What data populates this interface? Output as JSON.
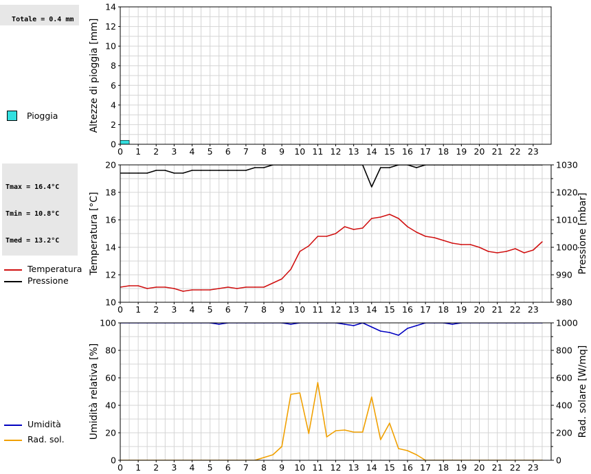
{
  "info": {
    "totale": "Totale = 0.4 mm",
    "tmax": "Tmax = 16.4°C",
    "tmin": "Tmin = 10.8°C",
    "tmed": "Tmed = 13.2°C"
  },
  "legend": {
    "rain": "Pioggia",
    "temperature": "Temperatura",
    "pressure": "Pressione",
    "humidity": "Umidità",
    "radiation": "Rad. sol."
  },
  "colors": {
    "rain": "#33e0e0",
    "temperature": "#d01010",
    "pressure": "#000000",
    "humidity": "#0000c0",
    "radiation": "#f0a000",
    "grid": "#d4d4d4"
  },
  "chart_data": [
    {
      "type": "bar",
      "ylabel": "Altezze di pioggia [mm]",
      "ylim": [
        0,
        14
      ],
      "yticks": [
        0,
        2,
        4,
        6,
        8,
        10,
        12,
        14
      ],
      "xticks": [
        0,
        1,
        2,
        3,
        4,
        5,
        6,
        7,
        8,
        9,
        10,
        11,
        12,
        13,
        14,
        15,
        16,
        17,
        18,
        19,
        20,
        21,
        22,
        23
      ],
      "series": [
        {
          "name": "Pioggia",
          "bars": [
            {
              "x": 0.0,
              "width": 0.5,
              "value": 0.4
            }
          ]
        }
      ]
    },
    {
      "type": "line",
      "ylabel": "Temperatura [°C]",
      "y2label": "Pressione [mbar]",
      "ylim": [
        10,
        20
      ],
      "y2lim": [
        980,
        1030
      ],
      "yticks": [
        10,
        12,
        14,
        16,
        18,
        20
      ],
      "y2ticks": [
        980,
        990,
        1000,
        1010,
        1020,
        1030
      ],
      "xticks": [
        0,
        1,
        2,
        3,
        4,
        5,
        6,
        7,
        8,
        9,
        10,
        11,
        12,
        13,
        14,
        15,
        16,
        17,
        18,
        19,
        20,
        21,
        22,
        23
      ],
      "series": [
        {
          "name": "Temperatura",
          "axis": "left",
          "x": [
            0,
            0.5,
            1,
            1.5,
            2,
            2.5,
            3,
            3.5,
            4,
            4.5,
            5,
            5.5,
            6,
            6.5,
            7,
            7.5,
            8,
            8.5,
            9,
            9.5,
            10,
            10.5,
            11,
            11.5,
            12,
            12.5,
            13,
            13.5,
            14,
            14.5,
            15,
            15.5,
            16,
            16.5,
            17,
            17.5,
            18,
            18.5,
            19,
            19.5,
            20,
            20.5,
            21,
            21.5,
            22,
            22.5,
            23,
            23.5
          ],
          "values": [
            11.1,
            11.2,
            11.2,
            11.0,
            11.1,
            11.1,
            11.0,
            10.8,
            10.9,
            10.9,
            10.9,
            11.0,
            11.1,
            11.0,
            11.1,
            11.1,
            11.1,
            11.4,
            11.7,
            12.4,
            13.7,
            14.1,
            14.8,
            14.8,
            15.0,
            15.5,
            15.3,
            15.4,
            16.1,
            16.2,
            16.4,
            16.1,
            15.5,
            15.1,
            14.8,
            14.7,
            14.5,
            14.3,
            14.2,
            14.2,
            14.0,
            13.7,
            13.6,
            13.7,
            13.9,
            13.6,
            13.8,
            14.4
          ]
        },
        {
          "name": "Pressione",
          "axis": "right",
          "x": [
            0,
            0.5,
            1,
            1.5,
            2,
            2.5,
            3,
            3.5,
            4,
            4.5,
            5,
            5.5,
            6,
            6.5,
            7,
            7.5,
            8,
            8.5,
            9,
            9.5,
            10,
            10.5,
            11,
            11.5,
            12,
            12.5,
            13,
            13.5,
            14,
            14.5,
            15,
            15.5,
            16,
            16.5,
            17,
            17.5,
            18,
            18.5,
            19,
            19.5,
            20,
            20.5,
            21,
            21.5,
            22,
            22.5,
            23,
            23.5
          ],
          "values": [
            1027,
            1027,
            1027,
            1027,
            1028,
            1028,
            1027,
            1027,
            1028,
            1028,
            1028,
            1028,
            1028,
            1028,
            1028,
            1029,
            1029,
            1030,
            1030,
            1030,
            1030,
            1030,
            1030,
            1030,
            1030,
            1030,
            1030,
            1030,
            1022,
            1029,
            1029,
            1030,
            1030,
            1029,
            1030,
            1030,
            1030,
            1030,
            1030,
            1030,
            1030,
            1030,
            1030,
            1030,
            1030,
            1030,
            1030,
            1030
          ]
        }
      ]
    },
    {
      "type": "line",
      "ylabel": "Umidità relativa [%]",
      "y2label": "Rad. solare [W/mq]",
      "ylim": [
        0,
        100
      ],
      "y2lim": [
        0,
        1000
      ],
      "yticks": [
        0,
        20,
        40,
        60,
        80,
        100
      ],
      "y2ticks": [
        0,
        200,
        400,
        600,
        800,
        1000
      ],
      "xticks": [
        0,
        1,
        2,
        3,
        4,
        5,
        6,
        7,
        8,
        9,
        10,
        11,
        12,
        13,
        14,
        15,
        16,
        17,
        18,
        19,
        20,
        21,
        22,
        23
      ],
      "series": [
        {
          "name": "Umidità",
          "axis": "left",
          "x": [
            0,
            0.5,
            1,
            1.5,
            2,
            2.5,
            3,
            3.5,
            4,
            4.5,
            5,
            5.5,
            6,
            6.5,
            7,
            7.5,
            8,
            8.5,
            9,
            9.5,
            10,
            10.5,
            11,
            11.5,
            12,
            12.5,
            13,
            13.5,
            14,
            14.5,
            15,
            15.5,
            16,
            16.5,
            17,
            17.5,
            18,
            18.5,
            19,
            19.5,
            20,
            20.5,
            21,
            21.5,
            22,
            22.5,
            23,
            23.5
          ],
          "values": [
            100,
            100,
            100,
            100,
            100,
            100,
            100,
            100,
            100,
            100,
            100,
            99,
            100,
            100,
            100,
            100,
            100,
            100,
            100,
            99,
            100,
            100,
            100,
            100,
            100,
            99,
            98,
            100,
            97,
            94,
            93,
            91,
            96,
            98,
            100,
            100,
            100,
            99,
            100,
            100,
            100,
            100,
            100,
            100,
            100,
            100,
            100,
            100
          ]
        },
        {
          "name": "Rad. sol.",
          "axis": "right",
          "x": [
            0,
            0.5,
            1,
            1.5,
            2,
            2.5,
            3,
            3.5,
            4,
            4.5,
            5,
            5.5,
            6,
            6.5,
            7,
            7.5,
            8,
            8.5,
            9,
            9.5,
            10,
            10.5,
            11,
            11.5,
            12,
            12.5,
            13,
            13.5,
            14,
            14.5,
            15,
            15.5,
            16,
            16.5,
            17,
            17.5,
            18,
            18.5,
            19,
            19.5,
            20,
            20.5,
            21,
            21.5,
            22,
            22.5,
            23,
            23.5
          ],
          "values": [
            0,
            0,
            0,
            0,
            0,
            0,
            0,
            0,
            0,
            0,
            0,
            0,
            0,
            0,
            0,
            0,
            20,
            40,
            100,
            480,
            490,
            195,
            565,
            170,
            215,
            220,
            205,
            205,
            460,
            150,
            270,
            85,
            70,
            40,
            0,
            0,
            0,
            0,
            0,
            0,
            0,
            0,
            0,
            0,
            0,
            0,
            0,
            0
          ]
        }
      ]
    }
  ]
}
